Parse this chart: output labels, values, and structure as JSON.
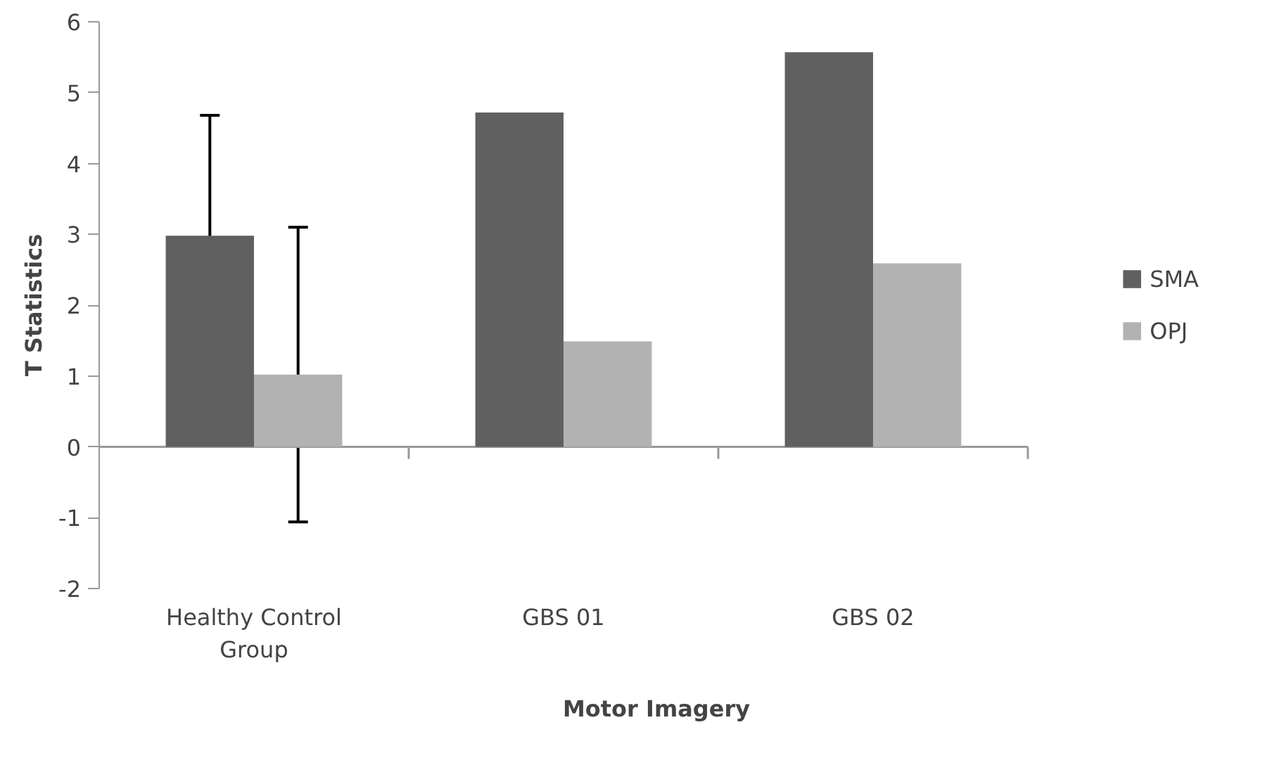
{
  "chart_data": {
    "type": "bar",
    "xlabel": "Motor Imagery",
    "ylabel": "T Statistics",
    "categories": [
      "Healthy Control Group",
      "GBS 01",
      "GBS 02"
    ],
    "series": [
      {
        "name": "SMA",
        "color": "#606060",
        "values": [
          2.98,
          4.72,
          5.57
        ],
        "errors": [
          1.7,
          null,
          null
        ]
      },
      {
        "name": "OPJ",
        "color": "#b2b2b2",
        "values": [
          1.02,
          1.49,
          2.59
        ],
        "errors": [
          2.08,
          null,
          null
        ]
      }
    ],
    "ylim": [
      -2,
      6
    ],
    "yticks": [
      -2,
      -1,
      0,
      1,
      2,
      3,
      4,
      5,
      6
    ],
    "legend": "right"
  }
}
